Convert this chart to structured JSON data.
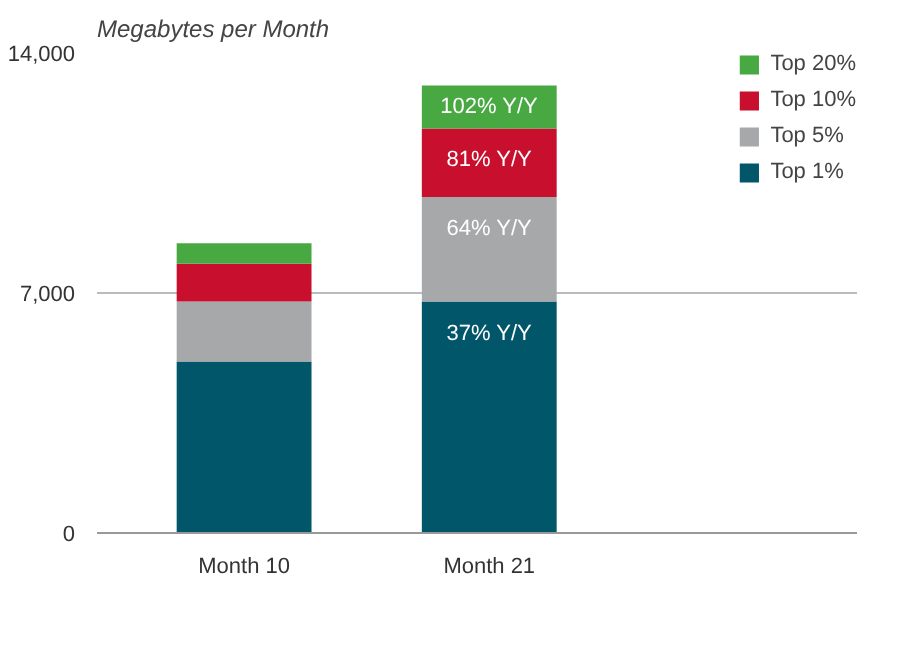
{
  "chart_data": {
    "type": "bar",
    "stacked": true,
    "title": "Megabytes per Month",
    "categories": [
      "Month 10",
      "Month 21"
    ],
    "series": [
      {
        "name": "Top 1%",
        "color": "#02566a",
        "values": [
          5000,
          6750
        ]
      },
      {
        "name": "Top 5%",
        "color": "#a7a8aa",
        "values": [
          1750,
          3050
        ]
      },
      {
        "name": "Top 10%",
        "color": "#c8102e",
        "values": [
          1100,
          2000
        ]
      },
      {
        "name": "Top 20%",
        "color": "#48a842",
        "values": [
          600,
          1250
        ]
      }
    ],
    "ylim": [
      0,
      14000
    ],
    "yticks": [
      0,
      {
        "value": 7000,
        "label": "7,000"
      },
      {
        "value": 14000,
        "label": "14,000"
      }
    ],
    "grid": "y",
    "legend": "right",
    "annotations": [
      {
        "text": "102% Y/Y",
        "x": "Month 21",
        "y": 13050
      },
      {
        "text": "81% Y/Y",
        "x": "Month 21",
        "y": 11800
      },
      {
        "text": "64% Y/Y",
        "x": "Month 21",
        "y": 9800
      },
      {
        "text": "37% Y/Y",
        "x": "Month 21",
        "y": 6750
      }
    ]
  }
}
